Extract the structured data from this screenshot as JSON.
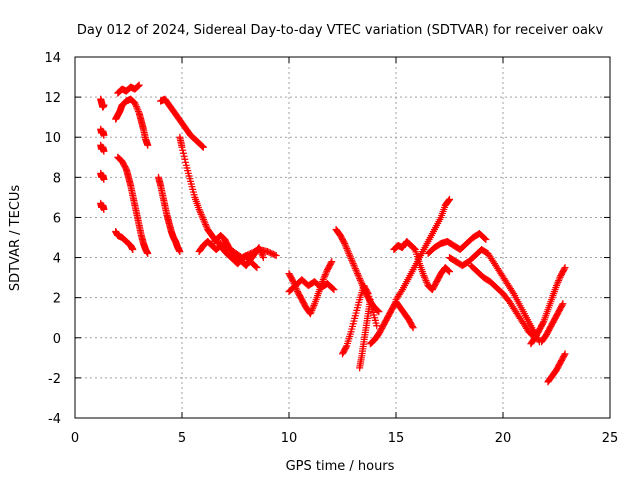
{
  "chart_data": {
    "type": "scatter",
    "title": "Day 012 of 2024, Sidereal Day-to-day VTEC variation (SDTVAR) for receiver oakv",
    "xlabel": "GPS time / hours",
    "ylabel": "SDTVAR / TECUs",
    "xlim": [
      0,
      25
    ],
    "ylim": [
      -4,
      14
    ],
    "xticks": [
      0,
      5,
      10,
      15,
      20,
      25
    ],
    "yticks": [
      -4,
      -2,
      0,
      2,
      4,
      6,
      8,
      10,
      12,
      14
    ],
    "xtick_labels": [
      "0",
      "5",
      "10",
      "15",
      "20",
      "25"
    ],
    "ytick_labels": [
      "-4",
      "-2",
      "0",
      "2",
      "4",
      "6",
      "8",
      "10",
      "12",
      "14"
    ],
    "grid": true,
    "marker": "+",
    "color": "#ff0000",
    "series": [
      {
        "name": "s1",
        "x": [
          1.2,
          1.25,
          1.3,
          1.35
        ],
        "y": [
          11.9,
          11.7,
          11.5,
          11.6
        ]
      },
      {
        "name": "s2",
        "x": [
          1.2,
          1.25,
          1.3,
          1.35
        ],
        "y": [
          10.4,
          10.2,
          10.3,
          10.1
        ]
      },
      {
        "name": "s3",
        "x": [
          1.2,
          1.25,
          1.3,
          1.35
        ],
        "y": [
          9.6,
          9.4,
          9.5,
          9.3
        ]
      },
      {
        "name": "s4",
        "x": [
          1.2,
          1.25,
          1.3,
          1.35
        ],
        "y": [
          8.2,
          8.0,
          8.1,
          7.9
        ]
      },
      {
        "name": "s5",
        "x": [
          1.2,
          1.25,
          1.3,
          1.35
        ],
        "y": [
          6.7,
          6.5,
          6.6,
          6.4
        ]
      },
      {
        "name": "s6",
        "x": [
          2.0,
          2.2,
          2.4,
          2.6,
          2.8,
          3.0
        ],
        "y": [
          12.2,
          12.4,
          12.3,
          12.5,
          12.4,
          12.6
        ]
      },
      {
        "name": "s7",
        "x": [
          1.9,
          2.0,
          2.1,
          2.2,
          2.4,
          2.6,
          2.8,
          3.0,
          3.1,
          3.2,
          3.3,
          3.4
        ],
        "y": [
          10.9,
          11.1,
          11.3,
          11.6,
          11.8,
          11.9,
          11.7,
          11.2,
          10.8,
          10.4,
          9.9,
          9.6
        ]
      },
      {
        "name": "s8",
        "x": [
          2.0,
          2.2,
          2.4,
          2.5,
          2.6,
          2.7,
          2.8,
          2.9,
          3.0,
          3.1,
          3.2,
          3.3,
          3.4
        ],
        "y": [
          9.0,
          8.8,
          8.4,
          8.0,
          7.6,
          7.1,
          6.6,
          6.1,
          5.6,
          5.1,
          4.7,
          4.4,
          4.2
        ]
      },
      {
        "name": "s9",
        "x": [
          1.9,
          2.0,
          2.2,
          2.4,
          2.6,
          2.7
        ],
        "y": [
          5.3,
          5.1,
          5.0,
          4.8,
          4.6,
          4.4
        ]
      },
      {
        "name": "s10",
        "x": [
          4.0,
          4.2,
          4.4,
          4.6,
          4.8,
          5.0,
          5.2,
          5.4,
          5.6,
          5.8,
          6.0
        ],
        "y": [
          11.8,
          11.9,
          11.6,
          11.3,
          11.0,
          10.7,
          10.4,
          10.1,
          9.9,
          9.7,
          9.5
        ]
      },
      {
        "name": "s11",
        "x": [
          3.9,
          4.0,
          4.1,
          4.2,
          4.3,
          4.4,
          4.5,
          4.6,
          4.7,
          4.8,
          4.9
        ],
        "y": [
          8.0,
          7.6,
          7.1,
          6.6,
          6.1,
          5.7,
          5.3,
          5.0,
          4.8,
          4.5,
          4.3
        ]
      },
      {
        "name": "s12",
        "x": [
          4.9,
          5.0,
          5.2,
          5.4,
          5.6,
          5.8,
          6.0,
          6.2,
          6.4,
          6.6,
          7.0,
          7.4,
          7.8,
          8.2,
          8.6,
          9.0,
          9.4
        ],
        "y": [
          10.0,
          9.5,
          8.6,
          7.8,
          7.0,
          6.4,
          5.9,
          5.4,
          5.1,
          4.8,
          4.6,
          4.3,
          4.0,
          4.2,
          4.4,
          4.3,
          4.1
        ]
      },
      {
        "name": "s13",
        "x": [
          6.5,
          6.8,
          7.0,
          7.2,
          7.5,
          7.8,
          8.0,
          8.2,
          8.4,
          8.6,
          8.8
        ],
        "y": [
          4.8,
          5.1,
          4.9,
          4.5,
          4.1,
          3.8,
          3.6,
          3.9,
          4.2,
          4.5,
          4.0
        ]
      },
      {
        "name": "s14",
        "x": [
          5.8,
          6.0,
          6.2,
          6.4,
          6.6,
          6.8,
          7.0,
          7.2,
          7.4,
          7.6,
          7.8,
          8.0,
          8.2,
          8.5
        ],
        "y": [
          4.3,
          4.6,
          4.8,
          4.6,
          4.4,
          4.6,
          4.3,
          4.1,
          3.9,
          3.7,
          3.9,
          4.1,
          3.8,
          3.5
        ]
      },
      {
        "name": "s15",
        "x": [
          10.0,
          10.2,
          10.4,
          10.6,
          10.8,
          11.0,
          11.2,
          11.4,
          11.6,
          11.8,
          12.0
        ],
        "y": [
          3.2,
          2.8,
          2.3,
          1.9,
          1.5,
          1.2,
          1.7,
          2.3,
          2.9,
          3.4,
          3.8
        ]
      },
      {
        "name": "s16",
        "x": [
          10.0,
          10.3,
          10.6,
          10.9,
          11.2,
          11.5,
          11.8,
          12.1
        ],
        "y": [
          2.3,
          2.6,
          2.9,
          2.6,
          2.8,
          2.5,
          2.7,
          2.4
        ]
      },
      {
        "name": "s17",
        "x": [
          12.2,
          12.4,
          12.6,
          12.8,
          13.0,
          13.2,
          13.4,
          13.6,
          13.8,
          14.0,
          14.2
        ],
        "y": [
          5.4,
          5.1,
          4.7,
          4.2,
          3.7,
          3.2,
          2.7,
          2.2,
          1.8,
          1.5,
          1.3
        ]
      },
      {
        "name": "s18",
        "x": [
          12.5,
          12.7,
          12.9,
          13.1,
          13.3,
          13.5,
          13.7,
          13.9,
          14.1
        ],
        "y": [
          -0.8,
          -0.4,
          0.3,
          1.1,
          1.9,
          2.6,
          2.2,
          1.4,
          0.6
        ]
      },
      {
        "name": "s19",
        "x": [
          13.3,
          13.4,
          13.5,
          13.6,
          13.7,
          13.8
        ],
        "y": [
          -1.5,
          -0.9,
          -0.2,
          0.5,
          1.2,
          1.9
        ]
      },
      {
        "name": "s20",
        "x": [
          13.8,
          14.0,
          14.2,
          14.4,
          14.6,
          14.8,
          15.0,
          15.2,
          15.4,
          15.6,
          15.8
        ],
        "y": [
          -0.3,
          -0.1,
          0.2,
          0.6,
          1.0,
          1.4,
          1.8,
          1.5,
          1.2,
          0.9,
          0.5
        ]
      },
      {
        "name": "s21",
        "x": [
          14.9,
          15.1,
          15.3,
          15.5,
          15.7,
          15.9,
          16.1,
          16.3,
          16.5,
          16.7,
          16.9,
          17.1,
          17.3,
          17.5
        ],
        "y": [
          4.4,
          4.6,
          4.5,
          4.8,
          4.6,
          4.4,
          3.7,
          3.1,
          2.6,
          2.4,
          2.8,
          3.2,
          3.5,
          3.3
        ]
      },
      {
        "name": "s22",
        "x": [
          15.0,
          15.3,
          15.6,
          15.9,
          16.2,
          16.5,
          16.8,
          17.1,
          17.3,
          17.5
        ],
        "y": [
          1.9,
          2.4,
          3.0,
          3.6,
          4.2,
          4.8,
          5.4,
          6.0,
          6.6,
          6.9
        ]
      },
      {
        "name": "s23",
        "x": [
          16.5,
          16.8,
          17.1,
          17.4,
          17.7,
          18.0,
          18.3,
          18.6,
          18.9,
          19.2
        ],
        "y": [
          4.2,
          4.5,
          4.7,
          4.8,
          4.6,
          4.4,
          4.7,
          5.0,
          5.2,
          4.9
        ]
      },
      {
        "name": "s24",
        "x": [
          17.5,
          17.8,
          18.1,
          18.4,
          18.7,
          19.0,
          19.3,
          19.6,
          19.9,
          20.2,
          20.5,
          20.8,
          21.1,
          21.4,
          21.7
        ],
        "y": [
          4.0,
          3.8,
          3.6,
          3.8,
          4.1,
          4.4,
          4.2,
          3.7,
          3.2,
          2.7,
          2.2,
          1.6,
          1.0,
          0.4,
          -0.2
        ]
      },
      {
        "name": "s25",
        "x": [
          18.5,
          18.8,
          19.1,
          19.4,
          19.7,
          20.0,
          20.3,
          20.6,
          20.9,
          21.2,
          21.5
        ],
        "y": [
          3.6,
          3.3,
          3.0,
          2.8,
          2.5,
          2.2,
          1.8,
          1.3,
          0.8,
          0.3,
          0.0
        ]
      },
      {
        "name": "s26",
        "x": [
          21.3,
          21.5,
          21.7,
          21.9,
          22.1,
          22.3,
          22.5,
          22.7,
          22.9
        ],
        "y": [
          -0.3,
          0.0,
          0.4,
          0.8,
          1.4,
          2.0,
          2.6,
          3.1,
          3.5
        ]
      },
      {
        "name": "s27",
        "x": [
          21.8,
          22.0,
          22.2,
          22.4,
          22.6,
          22.8
        ],
        "y": [
          -0.2,
          0.1,
          0.5,
          0.9,
          1.3,
          1.7
        ]
      },
      {
        "name": "s28",
        "x": [
          22.1,
          22.3,
          22.5,
          22.7,
          22.9
        ],
        "y": [
          -2.2,
          -1.9,
          -1.6,
          -1.2,
          -0.8
        ]
      }
    ]
  }
}
